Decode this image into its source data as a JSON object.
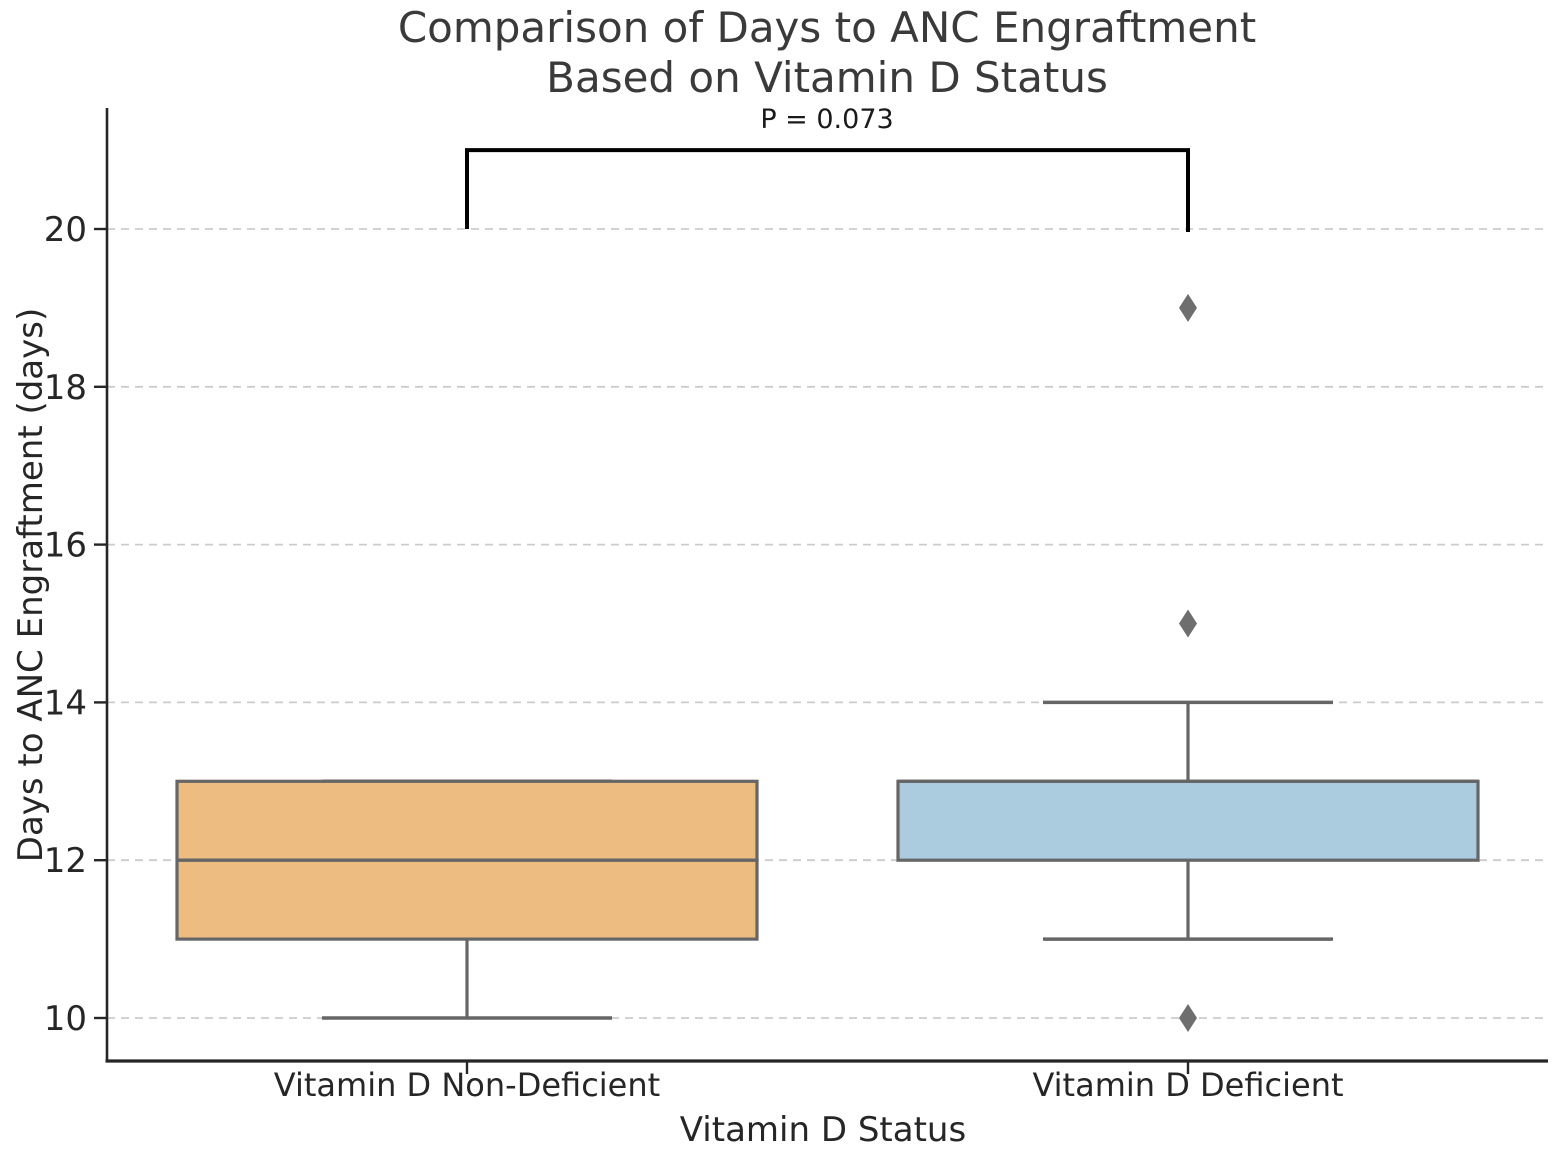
{
  "chart_data": {
    "type": "box",
    "title_line1": "Comparison of Days to ANC Engraftment",
    "title_line2": "Based on Vitamin D Status",
    "xlabel": "Vitamin D Status",
    "ylabel": "Days to ANC Engraftment (days)",
    "categories": [
      "Vitamin D Non-Deficient",
      "Vitamin D Deficient"
    ],
    "yticks": [
      10,
      12,
      14,
      16,
      18,
      20
    ],
    "ylim": [
      9.45,
      21.5
    ],
    "grid": "horizontal-dashed",
    "legend": "none",
    "series": [
      {
        "name": "Vitamin D Non-Deficient",
        "whisker_low": 10,
        "q1": 11,
        "median": 12,
        "q3": 13,
        "whisker_high": 13,
        "outliers": [],
        "fill": "#EDBC80"
      },
      {
        "name": "Vitamin D Deficient",
        "whisker_low": 11,
        "q1": 12,
        "median": 13,
        "q3": 13,
        "whisker_high": 14,
        "outliers": [
          19,
          15,
          10
        ],
        "fill": "#ABCBDF"
      }
    ],
    "annotation": {
      "label": "P = 0.073",
      "bar_top_value": 21.0,
      "left_tip_value": 20.0,
      "right_tip_value": 20.0
    },
    "colors": {
      "box_line": "#666666",
      "outlier": "#6E6E6E",
      "grid_line": "#CCCCCC",
      "axis_line": "#262626",
      "bracket": "#000000",
      "title_text": "#3A3A3A",
      "label_text": "#262626"
    }
  }
}
